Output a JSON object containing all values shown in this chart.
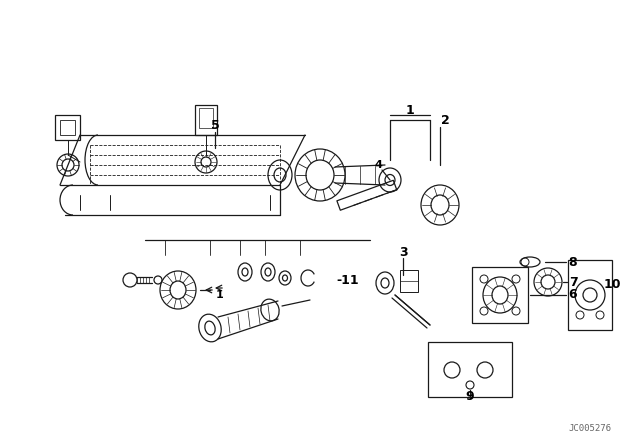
{
  "bg_color": "#ffffff",
  "line_color": "#1a1a1a",
  "label_color": "#000000",
  "watermark": "JC005276",
  "figsize": [
    6.4,
    4.48
  ],
  "dpi": 100
}
